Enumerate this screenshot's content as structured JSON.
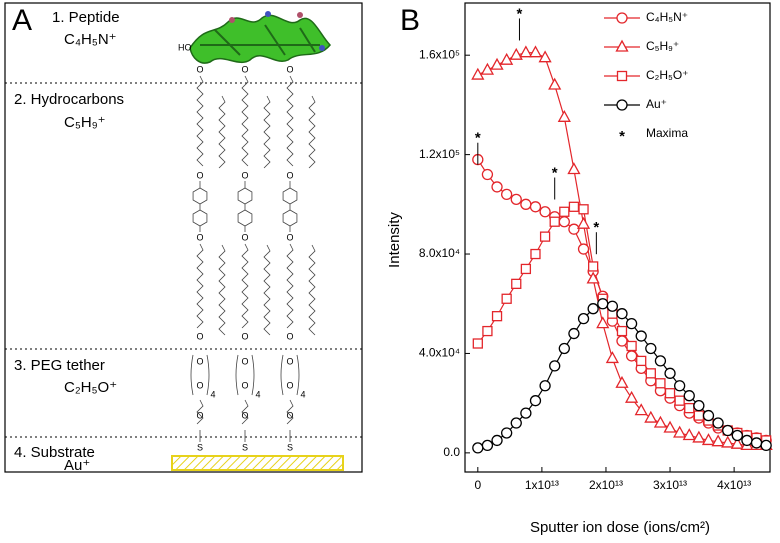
{
  "panel_a": {
    "letter": "A",
    "layers": [
      {
        "title": "1. Peptide",
        "ion": "C₄H₅N⁺"
      },
      {
        "title": "2. Hydrocarbons",
        "ion": "C₅H₉⁺"
      },
      {
        "title": "3. PEG tether",
        "ion": "C₂H₅O⁺"
      },
      {
        "title": "4. Substrate",
        "ion": "Au⁺"
      }
    ],
    "symbols": {
      "oxygen": "O",
      "sulfur": "S",
      "repeat": "4",
      "hydroxyl": "HO"
    }
  },
  "chart_data": {
    "type": "line",
    "panel_letter": "B",
    "y_label": "Intensity",
    "x_label": "Sputter ion dose (ions/cm²)",
    "x": [
      0,
      1500000000000.0,
      3000000000000.0,
      4500000000000.0,
      6000000000000.0,
      7500000000000.0,
      9000000000000.0,
      10500000000000.0,
      12000000000000.0,
      13500000000000.0,
      15000000000000.0,
      16500000000000.0,
      18000000000000.0,
      19500000000000.0,
      21000000000000.0,
      22500000000000.0,
      24000000000000.0,
      25500000000000.0,
      27000000000000.0,
      28500000000000.0,
      30000000000000.0,
      31500000000000.0,
      33000000000000.0,
      34500000000000.0,
      36000000000000.0,
      37500000000000.0,
      39000000000000.0,
      40500000000000.0,
      42000000000000.0,
      43500000000000.0,
      45000000000000.0
    ],
    "series": [
      {
        "name": "C₄H₅N⁺",
        "color": "#e3262b",
        "marker": "circle",
        "values": [
          118000,
          112000,
          107000,
          104000,
          102000,
          100000,
          99000,
          97000,
          95000,
          93000,
          90000,
          82000,
          73000,
          63000,
          53000,
          45000,
          39000,
          34000,
          29000,
          25000,
          22000,
          19000,
          16000,
          14000,
          12000,
          10000,
          9000,
          8000,
          7000,
          6000,
          5000
        ]
      },
      {
        "name": "C₅H₉⁺",
        "color": "#e3262b",
        "marker": "triangle",
        "values": [
          152000,
          154000,
          156000,
          158000,
          160000,
          161000,
          161000,
          159000,
          148000,
          135000,
          114000,
          92000,
          70000,
          52000,
          38000,
          28000,
          22000,
          17000,
          14000,
          12000,
          10000,
          8000,
          7000,
          6000,
          5000,
          4500,
          4000,
          3500,
          3000,
          3000,
          3000
        ]
      },
      {
        "name": "C₂H₅O⁺",
        "color": "#e3262b",
        "marker": "square",
        "values": [
          44000,
          49000,
          55000,
          62000,
          68000,
          74000,
          80000,
          87000,
          93000,
          97000,
          99000,
          98000,
          75000,
          62000,
          56000,
          49000,
          43000,
          37000,
          32000,
          28000,
          24000,
          21000,
          18000,
          15000,
          13000,
          11000,
          9000,
          8000,
          7000,
          6000,
          5000
        ]
      },
      {
        "name": "Au⁺",
        "color": "#000000",
        "marker": "circle",
        "values": [
          2000,
          3000,
          5000,
          8000,
          12000,
          16000,
          21000,
          27000,
          35000,
          42000,
          48000,
          54000,
          58000,
          60000,
          59000,
          56000,
          52000,
          47000,
          42000,
          37000,
          32000,
          27000,
          23000,
          19000,
          15000,
          12000,
          9000,
          7000,
          5000,
          4000,
          3000
        ]
      }
    ],
    "maxima": {
      "name": "Maxima",
      "symbol": "*",
      "points": [
        {
          "x": 0,
          "y": 128000
        },
        {
          "x": 6500000000000.0,
          "y": 178000
        },
        {
          "x": 12000000000000.0,
          "y": 114000
        },
        {
          "x": 18500000000000.0,
          "y": 92000
        }
      ]
    },
    "xlim": [
      -2000000000000.0,
      45600000000000.0
    ],
    "ylim": [
      -7700,
      181000
    ],
    "xticks": [
      0,
      {
        "value": 10000000000000.0,
        "label": "1x10¹³"
      },
      {
        "value": 20000000000000.0,
        "label": "2x10¹³"
      },
      {
        "value": 30000000000000.0,
        "label": "3x10¹³"
      },
      {
        "value": 40000000000000.0,
        "label": "4x10¹³"
      }
    ],
    "yticks": [
      {
        "value": 0,
        "label": "0.0"
      },
      {
        "value": 40000,
        "label": "4.0x10⁴"
      },
      {
        "value": 80000,
        "label": "8.0x10⁴"
      },
      {
        "value": 120000,
        "label": "1.2x10⁵"
      },
      {
        "value": 160000,
        "label": "1.6x10⁵"
      }
    ],
    "legend": "top-right"
  }
}
